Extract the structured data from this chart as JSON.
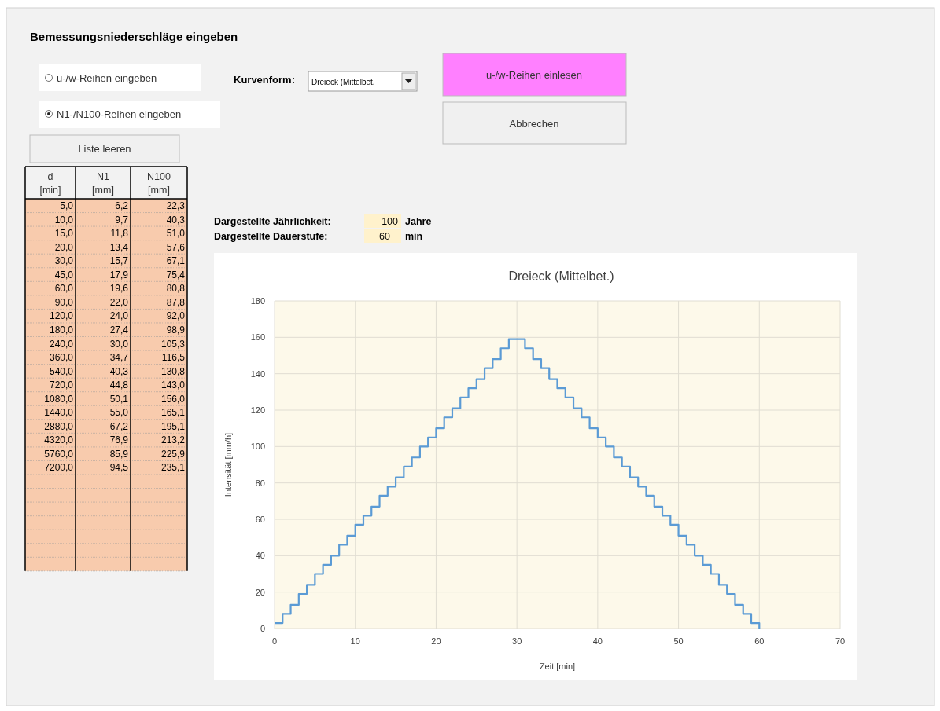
{
  "chart_data": [
    {
      "type": "other",
      "title": "Bemessungsniederschläge eingeben",
      "annotations": [
        "u-/w-Reihen eingeben",
        "N1-/N100-Reihen eingeben",
        "Kurvenform:",
        "Dreieck (Mittelbet.",
        "u-/w-Reihen einlesen",
        "Abbrechen",
        "Liste leeren",
        "Dargestellte Jährlichkeit:",
        "100",
        "Jahre",
        "Dargestellte Dauerstufe:",
        "60",
        "min"
      ]
    },
    {
      "type": "other",
      "annotations": [
        "d [min]",
        "N1 [mm]",
        "N100 [mm]",
        "5,0",
        "6,2",
        "22,3",
        "10,0",
        "9,7",
        "40,3",
        "15,0",
        "11,8",
        "51,0",
        "20,0",
        "13,4",
        "57,6",
        "30,0",
        "15,7",
        "67,1",
        "45,0",
        "17,9",
        "75,4",
        "60,0",
        "19,6",
        "80,8",
        "90,0",
        "22,0",
        "87,8",
        "120,0",
        "24,0",
        "92,0",
        "180,0",
        "27,4",
        "98,9",
        "240,0",
        "30,0",
        "105,3",
        "360,0",
        "34,7",
        "116,5",
        "540,0",
        "40,3",
        "130,8",
        "720,0",
        "44,8",
        "143,0",
        "1080,0",
        "50,1",
        "156,0",
        "1440,0",
        "55,0",
        "165,1",
        "2880,0",
        "67,2",
        "195,1",
        "4320,0",
        "76,9",
        "213,2",
        "5760,0",
        "85,9",
        "225,9",
        "7200,0",
        "94,5",
        "235,1"
      ]
    },
    {
      "type": "step",
      "title": "Dreieck (Mittelbet.)",
      "xlabel": "Zeit [min]",
      "ylabel": "Intensität [mm/h]",
      "xlim": [
        0,
        70
      ],
      "xticks": [
        0,
        10,
        20,
        30,
        40,
        50,
        60,
        70
      ],
      "ylim": [
        0,
        180
      ],
      "yticks": [
        0,
        20,
        40,
        60,
        80,
        100,
        120,
        140,
        160,
        180
      ],
      "grid": true,
      "x": [
        0,
        1,
        2,
        3,
        4,
        5,
        6,
        7,
        8,
        9,
        10,
        11,
        12,
        13,
        14,
        15,
        16,
        17,
        18,
        19,
        20,
        21,
        22,
        23,
        24,
        25,
        26,
        27,
        28,
        29,
        30,
        31,
        32,
        33,
        34,
        35,
        36,
        37,
        38,
        39,
        40,
        41,
        42,
        43,
        44,
        45,
        46,
        47,
        48,
        49,
        50,
        51,
        52,
        53,
        54,
        55,
        56,
        57,
        58,
        59,
        60
      ],
      "series": [
        {
          "color": "#5b9bd5",
          "values": [
            3,
            8,
            13,
            19,
            24,
            30,
            35,
            40,
            46,
            51,
            57,
            62,
            67,
            73,
            78,
            83,
            89,
            94,
            100,
            105,
            110,
            116,
            121,
            127,
            132,
            137,
            143,
            148,
            154,
            159,
            159,
            154,
            148,
            143,
            137,
            132,
            127,
            121,
            116,
            110,
            105,
            100,
            94,
            89,
            83,
            78,
            73,
            67,
            62,
            57,
            51,
            46,
            40,
            35,
            30,
            24,
            19,
            13,
            8,
            3,
            0
          ]
        }
      ]
    }
  ]
}
